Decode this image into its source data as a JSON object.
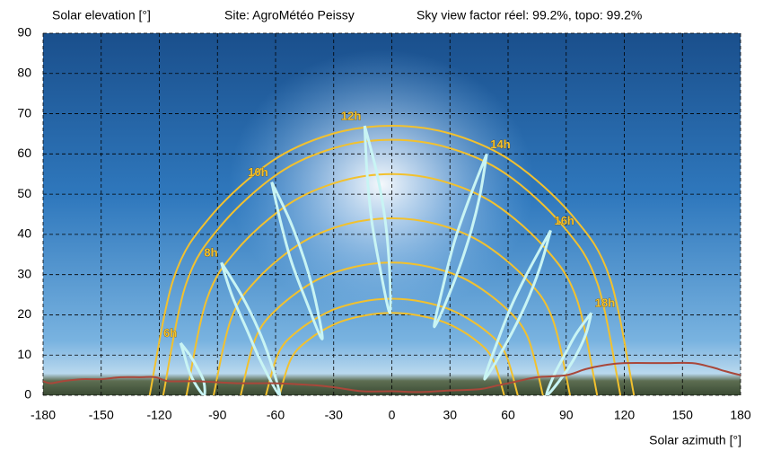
{
  "chart_data": {
    "type": "line",
    "title": "Site: AgroMétéo Peissy",
    "subtitle": "Sky view factor réel: 99.2%, topo: 99.2%",
    "y_label": "Solar elevation [°]",
    "x_label": "Solar azimuth [°]",
    "xlim": [
      -180,
      180
    ],
    "ylim": [
      0,
      90
    ],
    "xticks": [
      -180,
      -150,
      -120,
      -90,
      -60,
      -30,
      0,
      30,
      60,
      90,
      120,
      150,
      180
    ],
    "yticks": [
      0,
      10,
      20,
      30,
      40,
      50,
      60,
      70,
      80,
      90
    ],
    "grid": true,
    "series": [
      {
        "color": "#f2c12e",
        "x": [
          -125,
          -112.5,
          -93.8,
          -62.5,
          -31.3,
          0,
          31.3,
          62.5,
          93.8,
          112.5,
          125
        ],
        "values": [
          0,
          29.2,
          44.3,
          58.0,
          64.9,
          67,
          64.9,
          58.0,
          44.3,
          29.2,
          0
        ]
      },
      {
        "color": "#f2c12e",
        "x": [
          -118,
          -106.2,
          -88.5,
          -59,
          -29.5,
          0,
          29.5,
          59,
          88.5,
          106.2,
          118
        ],
        "values": [
          0,
          27.7,
          42.0,
          55.0,
          61.5,
          63.5,
          61.5,
          55.0,
          42.0,
          27.7,
          0
        ]
      },
      {
        "color": "#f2c12e",
        "x": [
          -106,
          -95.4,
          -79.5,
          -53,
          -26.5,
          0,
          26.5,
          53,
          79.5,
          95.4,
          106
        ],
        "values": [
          0,
          24.0,
          36.4,
          47.6,
          53.2,
          55,
          53.2,
          47.6,
          36.4,
          24.0,
          0
        ]
      },
      {
        "color": "#f2c12e",
        "x": [
          -92,
          -82.8,
          -69,
          -46,
          -23,
          0,
          23,
          46,
          69,
          82.8,
          92
        ],
        "values": [
          0,
          19.2,
          29.1,
          38.1,
          42.6,
          44,
          42.6,
          38.1,
          29.1,
          19.2,
          0
        ]
      },
      {
        "color": "#f2c12e",
        "x": [
          -78,
          -70.2,
          -58.5,
          -39,
          -19.5,
          0,
          19.5,
          39,
          58.5,
          70.2,
          78
        ],
        "values": [
          0,
          14.4,
          21.8,
          28.6,
          31.9,
          33,
          31.9,
          28.6,
          21.8,
          14.4,
          0
        ]
      },
      {
        "color": "#f2c12e",
        "x": [
          -65,
          -58.5,
          -48.8,
          -32.5,
          -16.3,
          0,
          16.3,
          32.5,
          48.8,
          58.5,
          65
        ],
        "values": [
          0,
          10.5,
          15.9,
          20.8,
          23.2,
          24,
          23.2,
          20.8,
          15.9,
          10.5,
          0
        ]
      },
      {
        "color": "#f2c12e",
        "x": [
          -58,
          -52.2,
          -43.5,
          -29,
          -14.5,
          0,
          14.5,
          29,
          43.5,
          52.2,
          58
        ],
        "values": [
          0,
          8.9,
          13.6,
          17.8,
          19.8,
          20.5,
          19.8,
          17.8,
          13.6,
          8.9,
          0
        ]
      },
      {
        "name": "6h",
        "color": "#c8f4f4",
        "x": [
          -109,
          -104,
          -100,
          -97,
          -97,
          -102,
          -105,
          -107,
          -109
        ],
        "values": [
          13,
          9.8,
          6.5,
          3.3,
          0,
          3.3,
          6.5,
          9.8,
          13
        ]
      },
      {
        "name": "8h",
        "color": "#c8f4f4",
        "x": [
          -88,
          -77.5,
          -69,
          -62.5,
          -58,
          -67.5,
          -75,
          -82.5,
          -88
        ],
        "values": [
          33,
          24.8,
          16.5,
          8.3,
          0,
          8.3,
          16.5,
          24.8,
          33
        ]
      },
      {
        "name": "10h",
        "color": "#c8f4f4",
        "x": [
          -62,
          -52.5,
          -45,
          -39.5,
          -36,
          -44.5,
          -52,
          -57.5,
          -62
        ],
        "values": [
          53,
          43.3,
          33.5,
          23.8,
          14,
          23.8,
          33.5,
          43.3,
          53
        ]
      },
      {
        "name": "12h",
        "color": "#c8f4f4",
        "x": [
          -14,
          -7.8,
          -3.5,
          -1.3,
          -1,
          -6.3,
          -10.5,
          -12.8,
          -14
        ],
        "values": [
          67,
          55.4,
          43.8,
          32.1,
          20.5,
          32.1,
          43.8,
          55.4,
          67
        ]
      },
      {
        "name": "14h",
        "color": "#c8f4f4",
        "x": [
          49,
          45.3,
          39.5,
          31.8,
          22,
          26.8,
          32.5,
          40.3,
          49
        ],
        "values": [
          60,
          49.3,
          38.5,
          27.8,
          17,
          27.8,
          38.5,
          49.3,
          60
        ]
      },
      {
        "name": "16h",
        "color": "#c8f4f4",
        "x": [
          82,
          76.5,
          69,
          59.5,
          48,
          54.5,
          62,
          71.5,
          82
        ],
        "values": [
          41,
          31.8,
          22.5,
          13.3,
          4,
          13.3,
          22.5,
          31.8,
          41
        ]
      },
      {
        "name": "18h",
        "color": "#c8f4f4",
        "x": [
          103,
          100.3,
          95.5,
          88.8,
          80,
          83.8,
          89.5,
          95.3,
          103
        ],
        "values": [
          20.5,
          15.4,
          10.3,
          5.1,
          0,
          5.1,
          10.3,
          15.4,
          20.5
        ]
      },
      {
        "color": "#a9473a",
        "x": [
          -180,
          -176,
          -170,
          -160,
          -150,
          -140,
          -130,
          -122,
          -115,
          -100,
          -80,
          -60,
          -40,
          -30,
          -15,
          0,
          15,
          30,
          45,
          55,
          65,
          75,
          90,
          100,
          110,
          120,
          140,
          155,
          165,
          172,
          180
        ],
        "values": [
          3.5,
          3.0,
          3.5,
          4.0,
          4.0,
          4.5,
          4.5,
          4.5,
          3.5,
          3.5,
          3.0,
          3.0,
          2.5,
          2.0,
          1.0,
          1.0,
          0.8,
          1.2,
          1.5,
          2.5,
          3.5,
          4.5,
          5.0,
          6.5,
          7.5,
          8.0,
          8.0,
          8.0,
          7.0,
          6.0,
          5.0
        ]
      }
    ]
  }
}
